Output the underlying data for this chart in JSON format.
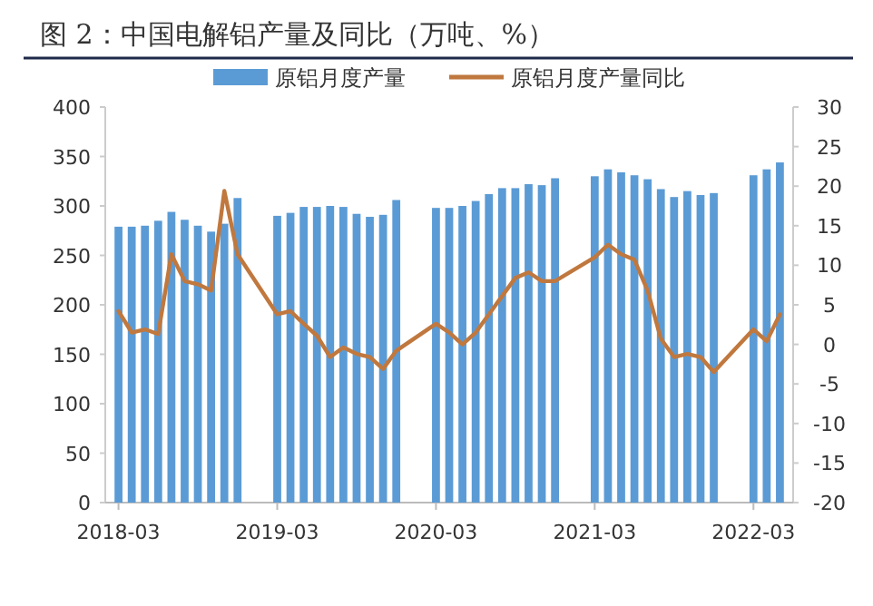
{
  "chart_data": {
    "type": "bar",
    "title": "图 2：中国电解铝产量及同比（万吨、%）",
    "x": [
      "2018-03",
      "2018-04",
      "2018-05",
      "2018-06",
      "2018-07",
      "2018-08",
      "2018-09",
      "2018-10",
      "2018-11",
      "2018-12",
      "2019-03",
      "2019-04",
      "2019-05",
      "2019-06",
      "2019-07",
      "2019-08",
      "2019-09",
      "2019-10",
      "2019-11",
      "2019-12",
      "2020-03",
      "2020-04",
      "2020-05",
      "2020-06",
      "2020-07",
      "2020-08",
      "2020-09",
      "2020-10",
      "2020-11",
      "2020-12",
      "2021-03",
      "2021-04",
      "2021-05",
      "2021-06",
      "2021-07",
      "2021-08",
      "2021-09",
      "2021-10",
      "2021-11",
      "2021-12",
      "2022-03",
      "2022-04",
      "2022-05"
    ],
    "series": [
      {
        "name": "原铝月度产量",
        "color": "#5b9bd5",
        "values": [
          279,
          279,
          280,
          285,
          294,
          286,
          280,
          274,
          282,
          308,
          290,
          293,
          299,
          299,
          300,
          299,
          292,
          289,
          291,
          306,
          298,
          298,
          300,
          305,
          312,
          318,
          318,
          322,
          321,
          328,
          330,
          337,
          334,
          331,
          327,
          317,
          309,
          315,
          311,
          313,
          331,
          337,
          344
        ]
      },
      {
        "name": "原铝月度产量同比",
        "type": "line",
        "axis": "y2",
        "color": "#c0783e",
        "values": [
          4.2,
          1.5,
          1.9,
          1.3,
          11.4,
          8.0,
          7.6,
          6.8,
          19.4,
          11.4,
          3.8,
          4.2,
          2.6,
          1.1,
          -1.6,
          -0.4,
          -1.2,
          -1.6,
          -3.1,
          -0.8,
          2.6,
          1.5,
          0,
          1.5,
          3.8,
          6.1,
          8.4,
          9.1,
          8.0,
          8.0,
          11.0,
          12.6,
          11.4,
          10.7,
          6.8,
          0.7,
          -1.6,
          -1.2,
          -1.6,
          -3.5,
          1.9,
          0.4,
          3.8
        ]
      }
    ],
    "xlim": [
      "2018-02",
      "2022-06"
    ],
    "xticks": [
      "2018-03",
      "2019-03",
      "2020-03",
      "2021-03",
      "2022-03"
    ],
    "ylim": [
      0,
      400
    ],
    "yticks": [
      0,
      50,
      100,
      150,
      200,
      250,
      300,
      350,
      400
    ],
    "y2lim": [
      -20,
      30
    ],
    "y2ticks": [
      -20,
      -15,
      -10,
      -5,
      0,
      5,
      10,
      15,
      20,
      25,
      30
    ],
    "legend": "top"
  }
}
